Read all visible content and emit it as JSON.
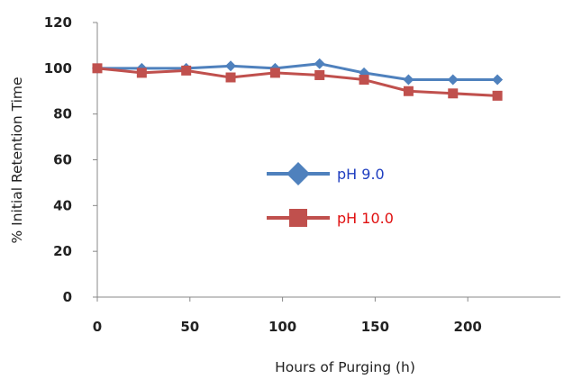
{
  "chart_data": {
    "type": "line",
    "xlabel": "Hours of Purging (h)",
    "ylabel": "% Initial Retention Time",
    "xlim": [
      0,
      250
    ],
    "ylim": [
      0,
      120
    ],
    "xticks": [
      0,
      50,
      100,
      150,
      200
    ],
    "yticks": [
      0,
      20,
      40,
      60,
      80,
      100,
      120
    ],
    "grid": false,
    "legend_position": "center",
    "series": [
      {
        "name": "pH 9.0",
        "color": "#4f81bd",
        "label_color": "#1f3ec0",
        "marker": "diamond",
        "x": [
          0,
          24,
          48,
          72,
          96,
          120,
          144,
          168,
          192,
          216
        ],
        "y": [
          100,
          100,
          100,
          101,
          100,
          102,
          98,
          95,
          95,
          95
        ]
      },
      {
        "name": "pH 10.0",
        "color": "#c0504d",
        "label_color": "#e01010",
        "marker": "square",
        "x": [
          0,
          24,
          48,
          72,
          96,
          120,
          144,
          168,
          192,
          216
        ],
        "y": [
          100,
          98,
          99,
          96,
          98,
          97,
          95,
          90,
          89,
          88
        ]
      }
    ]
  }
}
